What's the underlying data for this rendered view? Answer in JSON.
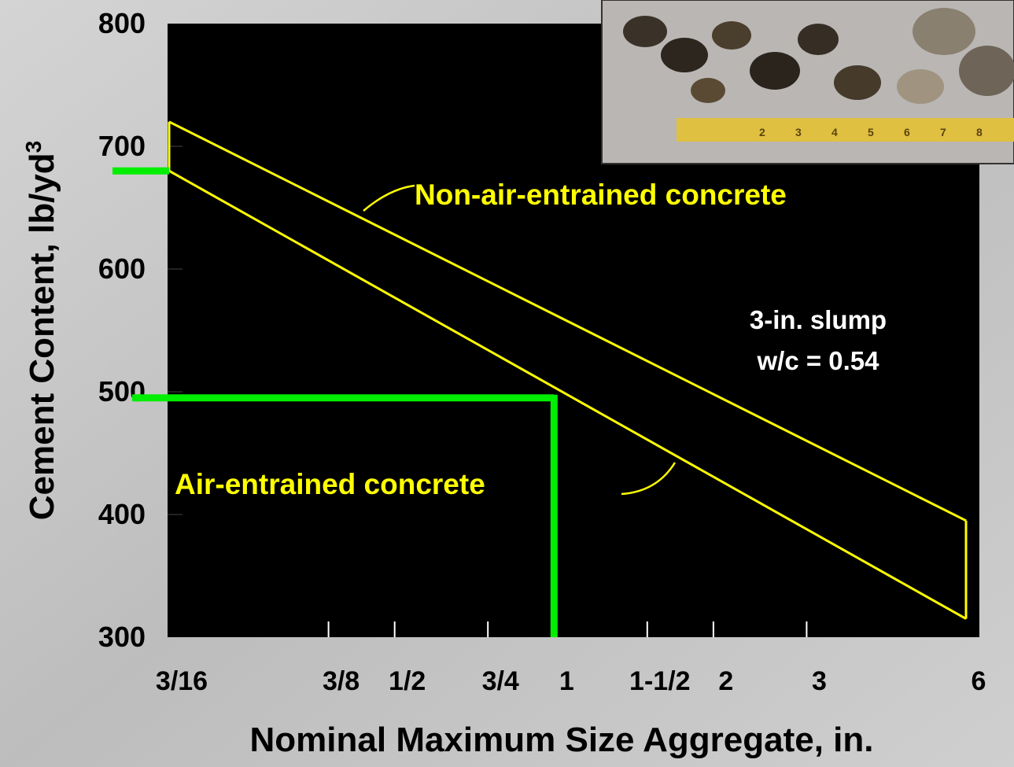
{
  "chart_data": {
    "type": "line",
    "log_x": true,
    "x_label": "Nominal Maximum Size Aggregate, in.",
    "y_label": "Cement Content, lb/yd",
    "y_label_sup": "3",
    "xlim": [
      0.1875,
      6
    ],
    "ylim": [
      300,
      800
    ],
    "xticks": [
      {
        "value": 0.1875,
        "label": "3/16"
      },
      {
        "value": 0.375,
        "label": "3/8"
      },
      {
        "value": 0.5,
        "label": "1/2"
      },
      {
        "value": 0.75,
        "label": "3/4"
      },
      1,
      {
        "value": 1.5,
        "label": "1-1/2"
      },
      2,
      3,
      6
    ],
    "yticks": [
      300,
      400,
      500,
      600,
      700,
      800
    ],
    "series": [
      {
        "name": "Non-air-entrained concrete",
        "color": "#ffff00",
        "x": [
          0.1875,
          6
        ],
        "values": [
          720,
          395
        ]
      },
      {
        "name": "Air-entrained concrete",
        "color": "#ffff00",
        "x": [
          0.1875,
          6
        ],
        "values": [
          680,
          315
        ]
      }
    ],
    "guides": {
      "color": "#00ee00",
      "x": [
        0.1875,
        1
      ],
      "values": [
        680,
        495
      ]
    },
    "annotations": [
      "3-in. slump",
      "w/c = 0.54"
    ],
    "photo_labels": [
      "2",
      "3",
      "4",
      "5",
      "6",
      "7",
      "8"
    ]
  }
}
